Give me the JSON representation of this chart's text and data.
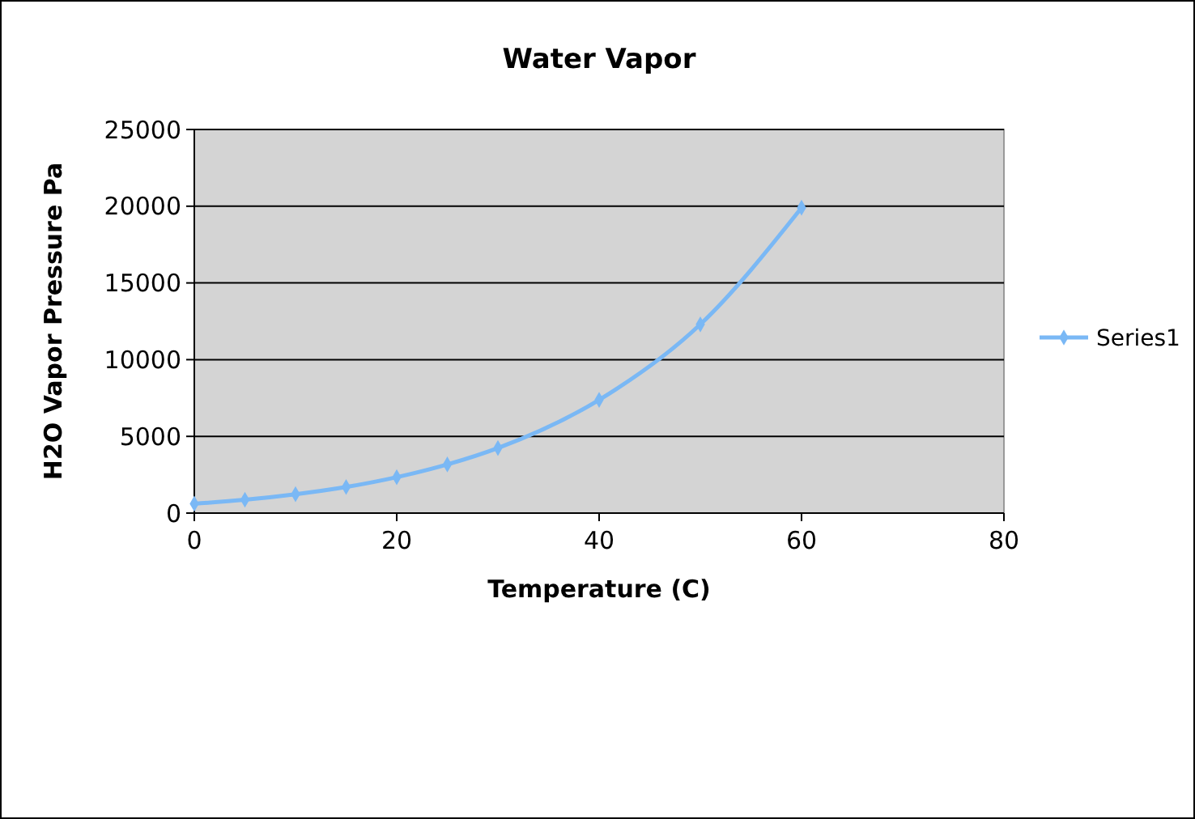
{
  "chart_data": {
    "type": "line",
    "title": "Water Vapor",
    "xlabel": "Temperature (C)",
    "ylabel": "H2O Vapor Pressure Pa",
    "x": [
      0,
      5,
      10,
      15,
      20,
      25,
      30,
      40,
      50,
      60
    ],
    "series": [
      {
        "name": "Series1",
        "color": "#7ab8f5",
        "values": [
          610,
          870,
          1230,
          1700,
          2340,
          3170,
          4240,
          7380,
          12300,
          19900
        ]
      }
    ],
    "xlim": [
      0,
      80
    ],
    "xticks": [
      0,
      20,
      40,
      60,
      80
    ],
    "ylim": [
      0,
      25000
    ],
    "yticks": [
      0,
      5000,
      10000,
      15000,
      20000,
      25000
    ],
    "grid": "y",
    "legend": "right",
    "marker": "diamond",
    "line_style": "solid"
  }
}
